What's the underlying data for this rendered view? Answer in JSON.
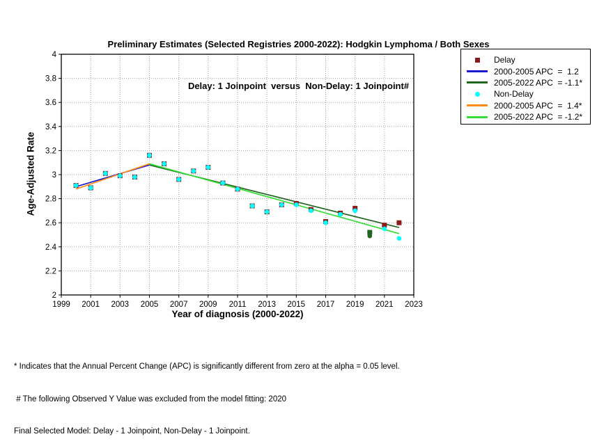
{
  "title": {
    "line1": "Preliminary Estimates (Selected Registries 2000-2022): Hodgkin Lymphoma / Both Sexes",
    "line2": "Delay: 1 Joinpoint  versus  Non-Delay: 1 Joinpoint#"
  },
  "colors": {
    "delay": "#8B1C1C",
    "delay_fit1": "#1A1ACC",
    "delay_fit2": "#1F661F",
    "non_delay": "#00FFFF",
    "nd_fit1": "#FF8C1A",
    "nd_fit2": "#33DD33",
    "excluded": "#1F661F",
    "grid": "#A0A0A0",
    "frame": "#000000"
  },
  "legend": {
    "items": [
      {
        "swatch": "square",
        "color_key": "delay",
        "label": "Delay",
        "name": "legend-delay-marker"
      },
      {
        "swatch": "line",
        "color_key": "delay_fit1",
        "label": "2000-2005 APC  =  1.2",
        "name": "legend-delay-apc1"
      },
      {
        "swatch": "line",
        "color_key": "delay_fit2",
        "label": "2005-2022 APC  = -1.1*",
        "name": "legend-delay-apc2"
      },
      {
        "swatch": "circle",
        "color_key": "non_delay",
        "label": "Non-Delay",
        "name": "legend-nondelay-marker"
      },
      {
        "swatch": "line",
        "color_key": "nd_fit1",
        "label": "2000-2005 APC  =  1.4*",
        "name": "legend-nondelay-apc1"
      },
      {
        "swatch": "line",
        "color_key": "nd_fit2",
        "label": "2005-2022 APC  = -1.2*",
        "name": "legend-nondelay-apc2"
      }
    ]
  },
  "chart_data": {
    "type": "line",
    "title": "Preliminary Estimates (Selected Registries 2000-2022): Hodgkin Lymphoma / Both Sexes — Delay: 1 Joinpoint versus Non-Delay: 1 Joinpoint#",
    "xlabel": "Year of diagnosis (2000-2022)",
    "ylabel": "Age-Adjusted Rate",
    "xlim": [
      1999,
      2023
    ],
    "ylim": [
      2,
      4
    ],
    "x_ticks": [
      1999,
      2001,
      2003,
      2005,
      2007,
      2009,
      2011,
      2013,
      2015,
      2017,
      2019,
      2021,
      2023
    ],
    "y_ticks": [
      2,
      2.2,
      2.4,
      2.6,
      2.8,
      3,
      3.2,
      3.4,
      3.6,
      3.8,
      4
    ],
    "grid": true,
    "legend_position": "upper right outside",
    "years": [
      2000,
      2001,
      2002,
      2003,
      2004,
      2005,
      2006,
      2007,
      2008,
      2009,
      2010,
      2011,
      2012,
      2013,
      2014,
      2015,
      2016,
      2017,
      2018,
      2019,
      2020,
      2021,
      2022
    ],
    "series": [
      {
        "name": "Delay observed",
        "marker": "square",
        "color_key": "delay",
        "values": [
          2.91,
          2.89,
          3.01,
          2.99,
          2.98,
          3.16,
          3.09,
          2.96,
          3.03,
          3.06,
          2.93,
          2.88,
          2.74,
          2.69,
          2.75,
          2.76,
          2.71,
          2.61,
          2.68,
          2.72,
          2.52,
          2.58,
          2.6
        ]
      },
      {
        "name": "Non-Delay observed",
        "marker": "circle",
        "color_key": "non_delay",
        "values": [
          2.91,
          2.89,
          3.01,
          2.99,
          2.98,
          3.16,
          3.09,
          2.96,
          3.03,
          3.06,
          2.93,
          2.88,
          2.74,
          2.69,
          2.75,
          2.75,
          2.7,
          2.6,
          2.67,
          2.7,
          2.49,
          2.55,
          2.47
        ]
      }
    ],
    "excluded_years": [
      2020
    ],
    "fits": [
      {
        "name": "delay-fit-2000-2005",
        "color_key": "delay_fit1",
        "apc": 1.2,
        "points": [
          [
            2000,
            2.9
          ],
          [
            2005,
            3.08
          ]
        ]
      },
      {
        "name": "delay-fit-2005-2022",
        "color_key": "delay_fit2",
        "apc": -1.1,
        "points": [
          [
            2005,
            3.08
          ],
          [
            2022,
            2.56
          ]
        ]
      },
      {
        "name": "nondelay-fit-2000-2005",
        "color_key": "nd_fit1",
        "apc": 1.4,
        "points": [
          [
            2000,
            2.88
          ],
          [
            2005,
            3.09
          ]
        ]
      },
      {
        "name": "nondelay-fit-2005-2022",
        "color_key": "nd_fit2",
        "apc": -1.2,
        "points": [
          [
            2005,
            3.09
          ],
          [
            2022,
            2.51
          ]
        ]
      }
    ]
  },
  "footnotes": [
    "* Indicates that the Annual Percent Change (APC) is significantly different from zero at the alpha = 0.05 level.",
    " # The following Observed Y Value was excluded from the model fitting: 2020",
    "Final Selected Model: Delay - 1 Joinpoint, Non-Delay - 1 Joinpoint."
  ]
}
